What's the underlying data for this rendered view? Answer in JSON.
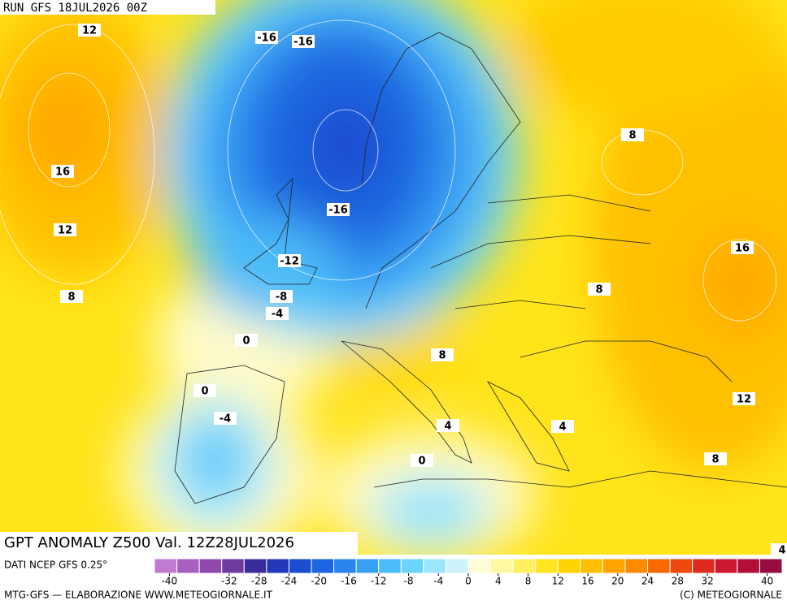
{
  "header": {
    "run": "RUN GFS 18JUL2026 00Z"
  },
  "map": {
    "title": "GPT ANOMALY Z500 Val. 12Z28JUL2026",
    "contour_labels": [
      12,
      16,
      12,
      8,
      -16,
      -16,
      -16,
      -12,
      -8,
      -4,
      0,
      0,
      -4,
      0,
      8,
      16,
      8,
      8,
      4,
      4,
      12,
      8,
      4
    ]
  },
  "colorbar": {
    "source": "DATI NCEP GFS 0.25°",
    "range": [
      -42,
      42
    ],
    "colors": [
      "#c07ad0",
      "#a860c0",
      "#8e48ae",
      "#6e3a9e",
      "#3a2c9a",
      "#2238b8",
      "#1a4ed0",
      "#1e66e0",
      "#2a84ee",
      "#38a0f4",
      "#4cbcf8",
      "#6cd4fa",
      "#9ce6fc",
      "#cdf4fc",
      "#fffdd8",
      "#fff8a0",
      "#fff060",
      "#ffe620",
      "#ffd400",
      "#ffbe00",
      "#ffa400",
      "#ff8a00",
      "#f86a00",
      "#ee4a10",
      "#e02a20",
      "#cc1830",
      "#b01038",
      "#960c40"
    ],
    "ticks": [
      -40,
      -32,
      -28,
      -24,
      -20,
      -16,
      -12,
      -8,
      -4,
      0,
      4,
      8,
      12,
      16,
      20,
      24,
      28,
      32,
      40
    ]
  },
  "footer": {
    "left": "MTG-GFS — ELABORAZIONE WWW.METEOGIORNALE.IT",
    "right": "(C) METEOGIORNALE"
  }
}
